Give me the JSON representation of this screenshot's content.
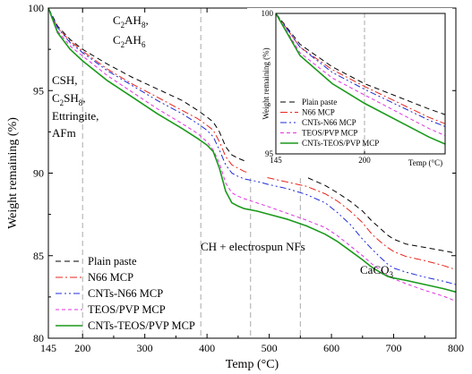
{
  "chart_data": {
    "type": "line",
    "xlabel": "Temp (°C)",
    "ylabel": "Weight remaining (%)",
    "xlim": [
      145,
      800
    ],
    "ylim": [
      80,
      100
    ],
    "xticks": [
      {
        "v": 145,
        "t": "145"
      },
      {
        "v": 200,
        "t": "200"
      },
      {
        "v": 300,
        "t": "300"
      },
      {
        "v": 400,
        "t": "400"
      },
      {
        "v": 500,
        "t": "500"
      },
      {
        "v": 600,
        "t": "600"
      },
      {
        "v": 700,
        "t": "700"
      },
      {
        "v": 800,
        "t": "800"
      }
    ],
    "yticks": [
      {
        "v": 80,
        "t": "80"
      },
      {
        "v": 85,
        "t": "85"
      },
      {
        "v": 90,
        "t": "90"
      },
      {
        "v": 95,
        "t": "95"
      },
      {
        "v": 100,
        "t": "100"
      }
    ],
    "vlines": [
      200,
      390,
      470,
      550
    ],
    "series": [
      {
        "name": "Plain paste",
        "color": "#000000",
        "dash": "6,4",
        "width": 1,
        "x": [
          145,
          160,
          180,
          200,
          240,
          280,
          320,
          360,
          385,
          400,
          410,
          420,
          430,
          440,
          450,
          460,
          480,
          500,
          530,
          560,
          590,
          610,
          630,
          650,
          665,
          680,
          690,
          700,
          720,
          750,
          780,
          800
        ],
        "y": [
          100,
          98.9,
          98.1,
          97.5,
          96.6,
          95.8,
          95.1,
          94.4,
          93.8,
          93.4,
          93.1,
          92.5,
          91.6,
          91.1,
          90.9,
          90.75,
          90.55,
          90.35,
          90.1,
          89.75,
          89.25,
          88.8,
          88.3,
          87.7,
          87.1,
          86.6,
          86.25,
          86.0,
          85.7,
          85.5,
          85.3,
          85.15
        ]
      },
      {
        "name": "N66 MCP",
        "color": "#e8261c",
        "dash": "8,3,2,3",
        "width": 1,
        "x": [
          145,
          160,
          180,
          200,
          240,
          280,
          320,
          360,
          385,
          400,
          410,
          420,
          430,
          440,
          450,
          460,
          480,
          500,
          530,
          560,
          590,
          610,
          630,
          650,
          665,
          680,
          690,
          700,
          720,
          750,
          780,
          800
        ],
        "y": [
          100,
          98.8,
          98.0,
          97.4,
          96.3,
          95.4,
          94.6,
          93.8,
          93.3,
          92.9,
          92.6,
          91.9,
          91.0,
          90.5,
          90.3,
          90.1,
          89.9,
          89.7,
          89.45,
          89.2,
          88.75,
          88.3,
          87.7,
          87.0,
          86.3,
          85.8,
          85.5,
          85.25,
          84.95,
          84.7,
          84.4,
          84.15
        ]
      },
      {
        "name": "CNTs-N66 MCP",
        "color": "#1f2bd8",
        "dash": "7,3,2,3,2,3",
        "width": 1,
        "x": [
          145,
          160,
          180,
          200,
          240,
          280,
          320,
          360,
          385,
          400,
          410,
          420,
          430,
          440,
          450,
          460,
          480,
          500,
          530,
          560,
          590,
          610,
          630,
          650,
          665,
          680,
          690,
          700,
          720,
          750,
          780,
          800
        ],
        "y": [
          100,
          98.8,
          97.9,
          97.3,
          96.2,
          95.3,
          94.4,
          93.6,
          93.0,
          92.6,
          92.2,
          91.4,
          90.5,
          90.0,
          89.8,
          89.65,
          89.5,
          89.3,
          89.05,
          88.7,
          88.2,
          87.6,
          86.9,
          86.0,
          85.4,
          84.85,
          84.5,
          84.25,
          84.0,
          83.7,
          83.45,
          83.25
        ]
      },
      {
        "name": "TEOS/PVP MCP",
        "color": "#e233e2",
        "dash": "4,3",
        "width": 1,
        "x": [
          145,
          160,
          180,
          200,
          240,
          280,
          320,
          360,
          385,
          400,
          410,
          420,
          430,
          440,
          450,
          460,
          480,
          500,
          530,
          560,
          590,
          610,
          630,
          650,
          665,
          680,
          690,
          700,
          720,
          750,
          780,
          800
        ],
        "y": [
          100,
          98.6,
          97.7,
          97.1,
          95.9,
          94.9,
          93.9,
          93.0,
          92.4,
          91.9,
          91.4,
          90.6,
          89.4,
          88.8,
          88.6,
          88.45,
          88.2,
          87.95,
          87.55,
          87.15,
          86.7,
          86.2,
          85.6,
          85.0,
          84.5,
          84.1,
          83.8,
          83.6,
          83.3,
          82.9,
          82.55,
          82.25
        ]
      },
      {
        "name": "CNTs-TEOS/PVP MCP",
        "color": "#1a9a1a",
        "dash": "",
        "width": 1.6,
        "x": [
          145,
          160,
          180,
          200,
          240,
          280,
          320,
          360,
          385,
          400,
          410,
          420,
          430,
          440,
          450,
          460,
          480,
          500,
          530,
          560,
          590,
          610,
          630,
          650,
          665,
          680,
          690,
          700,
          720,
          750,
          780,
          800
        ],
        "y": [
          100,
          98.5,
          97.5,
          96.8,
          95.6,
          94.6,
          93.6,
          92.7,
          92.1,
          91.7,
          91.3,
          90.3,
          88.9,
          88.2,
          88.0,
          87.85,
          87.7,
          87.5,
          87.2,
          86.8,
          86.3,
          85.85,
          85.3,
          84.75,
          84.3,
          83.95,
          83.75,
          83.65,
          83.5,
          83.25,
          83.0,
          82.8
        ]
      }
    ],
    "legend_position": "bottom-left",
    "annotations": {
      "c2ah8": {
        "main": "C",
        "sub1": "2",
        "mid": "AH",
        "sub2": "8",
        "tail": ","
      },
      "c2ah6": {
        "main": "C",
        "sub1": "2",
        "mid": "AH",
        "sub2": "6"
      },
      "csh": "CSH,",
      "c2sh8": {
        "main": "C",
        "sub1": "2",
        "mid": "SH",
        "sub2": "8",
        "tail": ","
      },
      "ettringite": "Ettringite,",
      "afm": "AFm",
      "ch": "CH + electrospun NFs",
      "caco3": {
        "main": "CaCO",
        "sub1": "3"
      }
    },
    "inset": {
      "xlabel": "Temp (°C)",
      "ylabel": "Weight remaining (%)",
      "xlim": [
        145,
        250
      ],
      "ylim": [
        95,
        100
      ],
      "xticks": [
        {
          "v": 145,
          "t": "145"
        },
        {
          "v": 200,
          "t": "200"
        }
      ],
      "yticks": [
        {
          "v": 95,
          "t": "95"
        },
        {
          "v": 100,
          "t": "100"
        }
      ],
      "vlines": [
        200
      ],
      "legend_position": "bottom-left"
    }
  }
}
